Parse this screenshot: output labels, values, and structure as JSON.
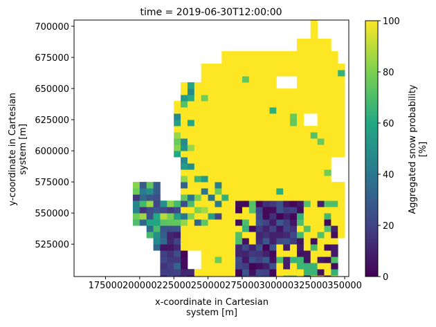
{
  "chart_data": {
    "type": "heatmap",
    "title": "time = 2019-06-30T12:00:00",
    "xlabel": [
      "x-coordinate in Cartesian",
      "system [m]"
    ],
    "ylabel": [
      "y-coordinate in Cartesian",
      "system [m]"
    ],
    "x_ticks": [
      "175000",
      "200000",
      "225000",
      "250000",
      "275000",
      "300000",
      "325000",
      "350000"
    ],
    "y_ticks": [
      "525000",
      "550000",
      "575000",
      "600000",
      "625000",
      "650000",
      "675000",
      "700000"
    ],
    "xlim": [
      152000,
      353000
    ],
    "ylim": [
      499000,
      705000
    ],
    "colorbar": {
      "label": [
        "Aggregated snow probability",
        "[%]"
      ],
      "ticks": [
        "0",
        "20",
        "40",
        "60",
        "80",
        "100"
      ],
      "range": [
        0,
        100
      ],
      "colormap": "viridis"
    },
    "grid_cell_size_m": 5000,
    "approximate": true,
    "regions": [
      {
        "name": "snow-covered core",
        "value": 100
      },
      {
        "name": "western margin pixels",
        "value": [
          10,
          90
        ]
      },
      {
        "name": "south-eastern low-snow pixels",
        "value": [
          0,
          30
        ]
      }
    ]
  }
}
